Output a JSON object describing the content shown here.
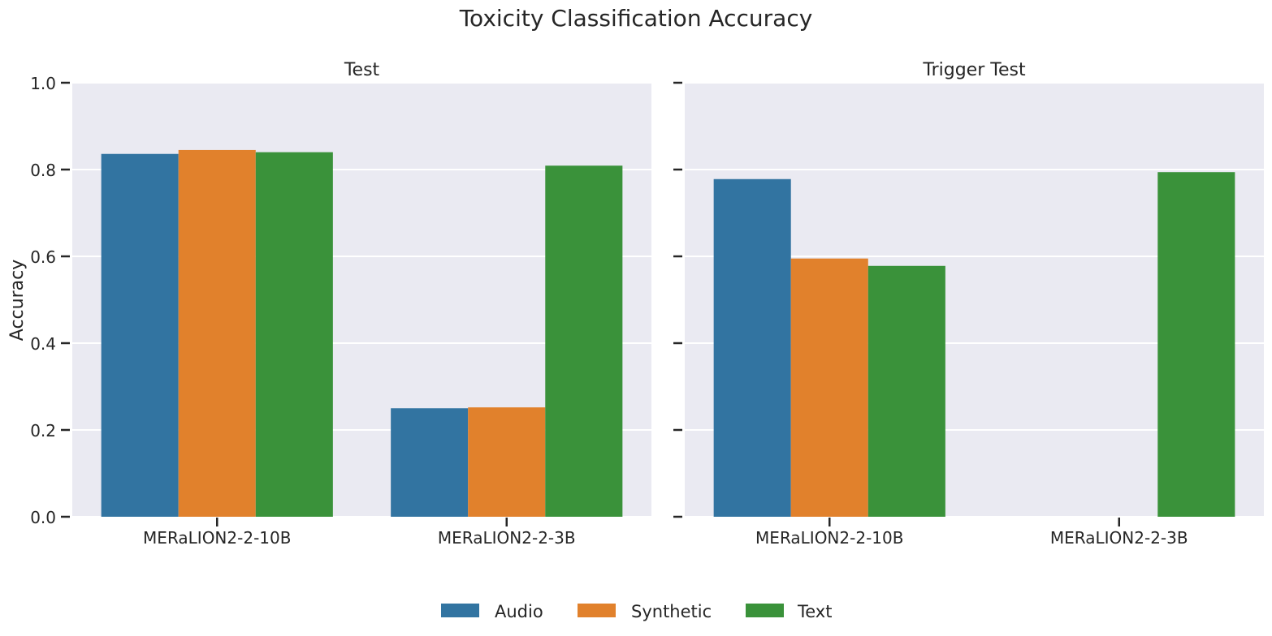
{
  "chart_data": {
    "type": "bar",
    "title": "Toxicity Classification Accuracy",
    "ylabel": "Accuracy",
    "ylim": [
      0,
      1.0
    ],
    "yticks": [
      "0.0",
      "0.2",
      "0.4",
      "0.6",
      "0.8",
      "1.0"
    ],
    "grid": true,
    "legend_position": "bottom-center",
    "legend": [
      {
        "name": "Audio",
        "color": "#3274a1"
      },
      {
        "name": "Synthetic",
        "color": "#e1812c"
      },
      {
        "name": "Text",
        "color": "#3a923a"
      }
    ],
    "panels": [
      {
        "title": "Test",
        "categories": [
          "MERaLION2-2-10B",
          "MERaLION2-2-3B"
        ],
        "series": [
          {
            "name": "Audio",
            "values": [
              0.836,
              0.25
            ]
          },
          {
            "name": "Synthetic",
            "values": [
              0.845,
              0.252
            ]
          },
          {
            "name": "Text",
            "values": [
              0.84,
              0.809
            ]
          }
        ]
      },
      {
        "title": "Trigger Test",
        "categories": [
          "MERaLION2-2-10B",
          "MERaLION2-2-3B"
        ],
        "series": [
          {
            "name": "Audio",
            "values": [
              0.778,
              0
            ]
          },
          {
            "name": "Synthetic",
            "values": [
              0.595,
              0
            ]
          },
          {
            "name": "Text",
            "values": [
              0.578,
              0.794
            ]
          }
        ]
      }
    ]
  }
}
